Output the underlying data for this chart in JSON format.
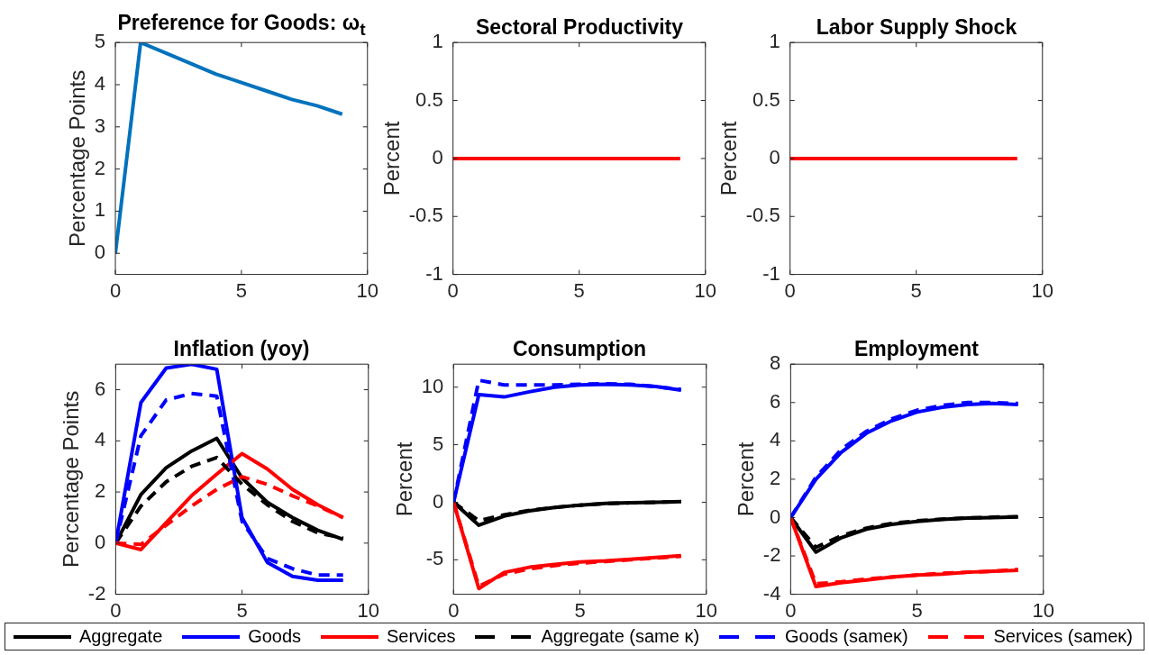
{
  "chart_data": [
    {
      "type": "line",
      "title": "Preference for Goods: ω$_{t}$",
      "ylabel": "Percentage Points",
      "x": [
        0,
        1,
        2,
        3,
        4,
        5,
        6,
        7,
        8,
        9
      ],
      "series": [
        {
          "color": "#0072bd",
          "values": [
            0,
            5,
            4.75,
            4.5,
            4.25,
            4.05,
            3.85,
            3.65,
            3.5,
            3.3
          ]
        }
      ],
      "xlim": [
        0,
        10
      ],
      "xticks": [
        0,
        5,
        10
      ],
      "ylim": [
        -0.5,
        5
      ],
      "yticks": [
        0,
        1,
        2,
        3,
        4,
        5
      ]
    },
    {
      "type": "line",
      "title": "Sectoral Productivity",
      "ylabel": "Percent",
      "x": [
        0,
        1,
        2,
        3,
        4,
        5,
        6,
        7,
        8,
        9
      ],
      "series": [
        {
          "color": "#ff0000",
          "values": [
            0,
            0,
            0,
            0,
            0,
            0,
            0,
            0,
            0,
            0
          ]
        }
      ],
      "xlim": [
        0,
        10
      ],
      "xticks": [
        0,
        5,
        10
      ],
      "ylim": [
        -1,
        1
      ],
      "yticks": [
        -1,
        -0.5,
        0,
        0.5,
        1
      ]
    },
    {
      "type": "line",
      "title": "Labor Supply Shock",
      "ylabel": "Percent",
      "x": [
        0,
        1,
        2,
        3,
        4,
        5,
        6,
        7,
        8,
        9
      ],
      "series": [
        {
          "color": "#ff0000",
          "values": [
            0,
            0,
            0,
            0,
            0,
            0,
            0,
            0,
            0,
            0
          ]
        }
      ],
      "xlim": [
        0,
        10
      ],
      "xticks": [
        0,
        5,
        10
      ],
      "ylim": [
        -1,
        1
      ],
      "yticks": [
        -1,
        -0.5,
        0,
        0.5,
        1
      ]
    },
    {
      "type": "line",
      "title": "Inflation (yoy)",
      "ylabel": "Percentage Points",
      "legend": "bottom",
      "x": [
        0,
        1,
        2,
        3,
        4,
        5,
        6,
        7,
        8,
        9
      ],
      "series": [
        {
          "name": "Aggregate",
          "color": "#000000",
          "values": [
            0,
            1.9,
            2.95,
            3.6,
            4.1,
            2.55,
            1.6,
            1.0,
            0.5,
            0.15
          ]
        },
        {
          "name": "Goods",
          "color": "#0000ff",
          "values": [
            0,
            5.5,
            6.85,
            7.0,
            6.8,
            1.0,
            -0.75,
            -1.3,
            -1.45,
            -1.45
          ]
        },
        {
          "name": "Services",
          "color": "#ff0000",
          "values": [
            0,
            -0.25,
            0.8,
            1.85,
            2.7,
            3.5,
            2.9,
            2.1,
            1.5,
            1.0
          ]
        },
        {
          "name": "Aggregate (same κ)",
          "color": "#000000",
          "line_style": "dashed",
          "values": [
            0,
            1.45,
            2.4,
            3.0,
            3.35,
            2.3,
            1.5,
            0.85,
            0.4,
            0.2
          ]
        },
        {
          "name": "Goods (sameκ)",
          "color": "#0000ff",
          "line_style": "dashed",
          "values": [
            0,
            4.2,
            5.6,
            5.85,
            5.75,
            0.85,
            -0.6,
            -1.0,
            -1.25,
            -1.25
          ]
        },
        {
          "name": "Services (sameκ)",
          "color": "#ff0000",
          "line_style": "dashed",
          "values": [
            0,
            -0.05,
            0.7,
            1.45,
            2.1,
            2.6,
            2.3,
            1.85,
            1.45,
            1.0
          ]
        }
      ],
      "xlim": [
        0,
        10
      ],
      "xticks": [
        0,
        5,
        10
      ],
      "ylim": [
        -2,
        7
      ],
      "yticks": [
        -2,
        0,
        2,
        4,
        6
      ]
    },
    {
      "type": "line",
      "title": "Consumption",
      "ylabel": "Percent",
      "x": [
        0,
        1,
        2,
        3,
        4,
        5,
        6,
        7,
        8,
        9
      ],
      "series": [
        {
          "color": "#000000",
          "values": [
            0,
            -2.0,
            -1.2,
            -0.75,
            -0.45,
            -0.25,
            -0.1,
            -0.05,
            0,
            0.05
          ]
        },
        {
          "color": "#0000ff",
          "values": [
            0,
            9.35,
            9.15,
            9.6,
            10.0,
            10.2,
            10.25,
            10.2,
            10.05,
            9.75
          ]
        },
        {
          "color": "#ff0000",
          "values": [
            0,
            -7.5,
            -6.1,
            -5.65,
            -5.4,
            -5.2,
            -5.1,
            -4.95,
            -4.8,
            -4.65
          ]
        },
        {
          "color": "#000000",
          "line_style": "dashed",
          "values": [
            0,
            -1.6,
            -1.1,
            -0.7,
            -0.45,
            -0.25,
            -0.12,
            -0.05,
            0,
            0.05
          ]
        },
        {
          "color": "#0000ff",
          "line_style": "dashed",
          "values": [
            0,
            10.6,
            10.2,
            10.2,
            10.2,
            10.25,
            10.3,
            10.25,
            10.05,
            9.8
          ]
        },
        {
          "color": "#ff0000",
          "line_style": "dashed",
          "values": [
            0,
            -7.3,
            -6.25,
            -5.8,
            -5.5,
            -5.3,
            -5.15,
            -5.0,
            -4.85,
            -4.7
          ]
        }
      ],
      "xlim": [
        0,
        10
      ],
      "xticks": [
        0,
        5,
        10
      ],
      "ylim": [
        -8,
        12
      ],
      "yticks": [
        -5,
        0,
        5,
        10
      ]
    },
    {
      "type": "line",
      "title": "Employment",
      "ylabel": "Percent",
      "x": [
        0,
        1,
        2,
        3,
        4,
        5,
        6,
        7,
        8,
        9
      ],
      "series": [
        {
          "color": "#000000",
          "values": [
            0,
            -1.8,
            -1.05,
            -0.6,
            -0.35,
            -0.2,
            -0.1,
            -0.03,
            0,
            0.03
          ]
        },
        {
          "color": "#0000ff",
          "values": [
            0,
            2.0,
            3.4,
            4.4,
            5.05,
            5.5,
            5.75,
            5.9,
            5.95,
            5.9
          ]
        },
        {
          "color": "#ff0000",
          "values": [
            0,
            -3.6,
            -3.4,
            -3.25,
            -3.1,
            -3.0,
            -2.95,
            -2.85,
            -2.8,
            -2.75
          ]
        },
        {
          "color": "#000000",
          "line_style": "dashed",
          "values": [
            0,
            -1.55,
            -0.95,
            -0.55,
            -0.3,
            -0.17,
            -0.08,
            -0.02,
            0.02,
            0.05
          ]
        },
        {
          "color": "#0000ff",
          "line_style": "dashed",
          "values": [
            0,
            2.1,
            3.55,
            4.5,
            5.15,
            5.6,
            5.85,
            6.0,
            6.0,
            5.95
          ]
        },
        {
          "color": "#ff0000",
          "line_style": "dashed",
          "values": [
            0,
            -3.45,
            -3.35,
            -3.2,
            -3.1,
            -3.0,
            -2.9,
            -2.85,
            -2.8,
            -2.7
          ]
        }
      ],
      "xlim": [
        0,
        10
      ],
      "xticks": [
        0,
        5,
        10
      ],
      "ylim": [
        -4,
        8
      ],
      "yticks": [
        -4,
        -2,
        0,
        2,
        4,
        6,
        8
      ]
    }
  ]
}
